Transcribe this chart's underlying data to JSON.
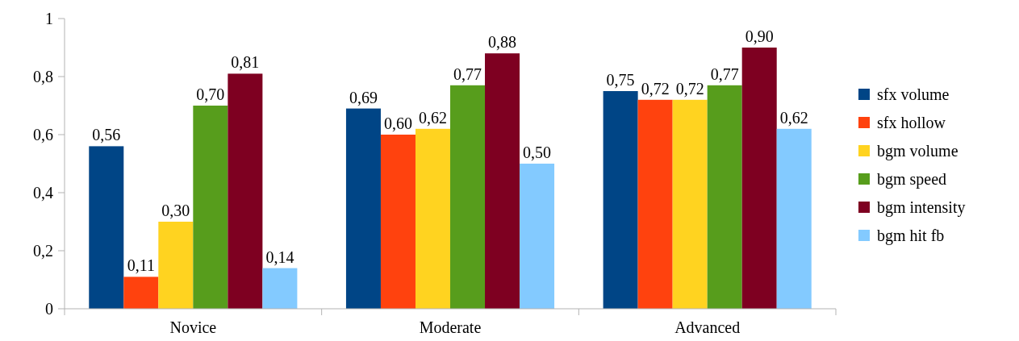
{
  "chart_data": {
    "type": "bar",
    "categories": [
      "Novice",
      "Moderate",
      "Advanced"
    ],
    "series": [
      {
        "name": "sfx volume",
        "color": "#004586",
        "values": [
          0.56,
          0.69,
          0.75
        ],
        "value_labels": [
          "0,56",
          "0,69",
          "0,75"
        ]
      },
      {
        "name": "sfx hollow",
        "color": "#ff420e",
        "values": [
          0.11,
          0.6,
          0.72
        ],
        "value_labels": [
          "0,11",
          "0,60",
          "0,72"
        ]
      },
      {
        "name": "bgm volume",
        "color": "#ffd320",
        "values": [
          0.3,
          0.62,
          0.72
        ],
        "value_labels": [
          "0,30",
          "0,62",
          "0,72"
        ]
      },
      {
        "name": "bgm speed",
        "color": "#579d1c",
        "values": [
          0.7,
          0.77,
          0.77
        ],
        "value_labels": [
          "0,70",
          "0,77",
          "0,77"
        ]
      },
      {
        "name": "bgm intensity",
        "color": "#7e0021",
        "values": [
          0.81,
          0.88,
          0.9
        ],
        "value_labels": [
          "0,81",
          "0,88",
          "0,90"
        ]
      },
      {
        "name": "bgm hit fb",
        "color": "#83caff",
        "values": [
          0.14,
          0.5,
          0.62
        ],
        "value_labels": [
          "0,14",
          "0,50",
          "0,62"
        ]
      }
    ],
    "ylim": [
      0,
      1
    ],
    "yticks": [
      0,
      {
        "value": 0.2,
        "label": "0,2"
      },
      {
        "value": 0.4,
        "label": "0,4"
      },
      {
        "value": 0.6,
        "label": "0,6"
      },
      {
        "value": 0.8,
        "label": "0,8"
      },
      1
    ],
    "legend": "right"
  }
}
